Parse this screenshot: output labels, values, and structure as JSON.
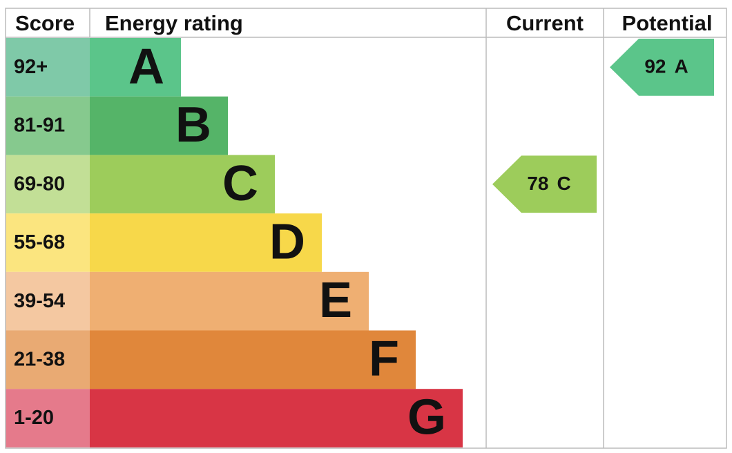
{
  "header": {
    "score": "Score",
    "energy_rating": "Energy rating",
    "current": "Current",
    "potential": "Potential"
  },
  "bands": [
    {
      "score": "92+",
      "letter": "A",
      "color": "#5bc58a",
      "light_color": "#7fc9a8"
    },
    {
      "score": "81-91",
      "letter": "B",
      "color": "#55b468",
      "light_color": "#86c98e"
    },
    {
      "score": "69-80",
      "letter": "C",
      "color": "#9dcc5b",
      "light_color": "#c2df96"
    },
    {
      "score": "55-68",
      "letter": "D",
      "color": "#f7d84a",
      "light_color": "#fbe57f"
    },
    {
      "score": "39-54",
      "letter": "E",
      "color": "#efaf72",
      "light_color": "#f4c8a1"
    },
    {
      "score": "21-38",
      "letter": "F",
      "color": "#e0873b",
      "light_color": "#e9aa73"
    },
    {
      "score": "1-20",
      "letter": "G",
      "color": "#d83545",
      "light_color": "#e57a8b"
    }
  ],
  "current": {
    "score": "78",
    "letter": "C"
  },
  "potential": {
    "score": "92",
    "letter": "A"
  }
}
